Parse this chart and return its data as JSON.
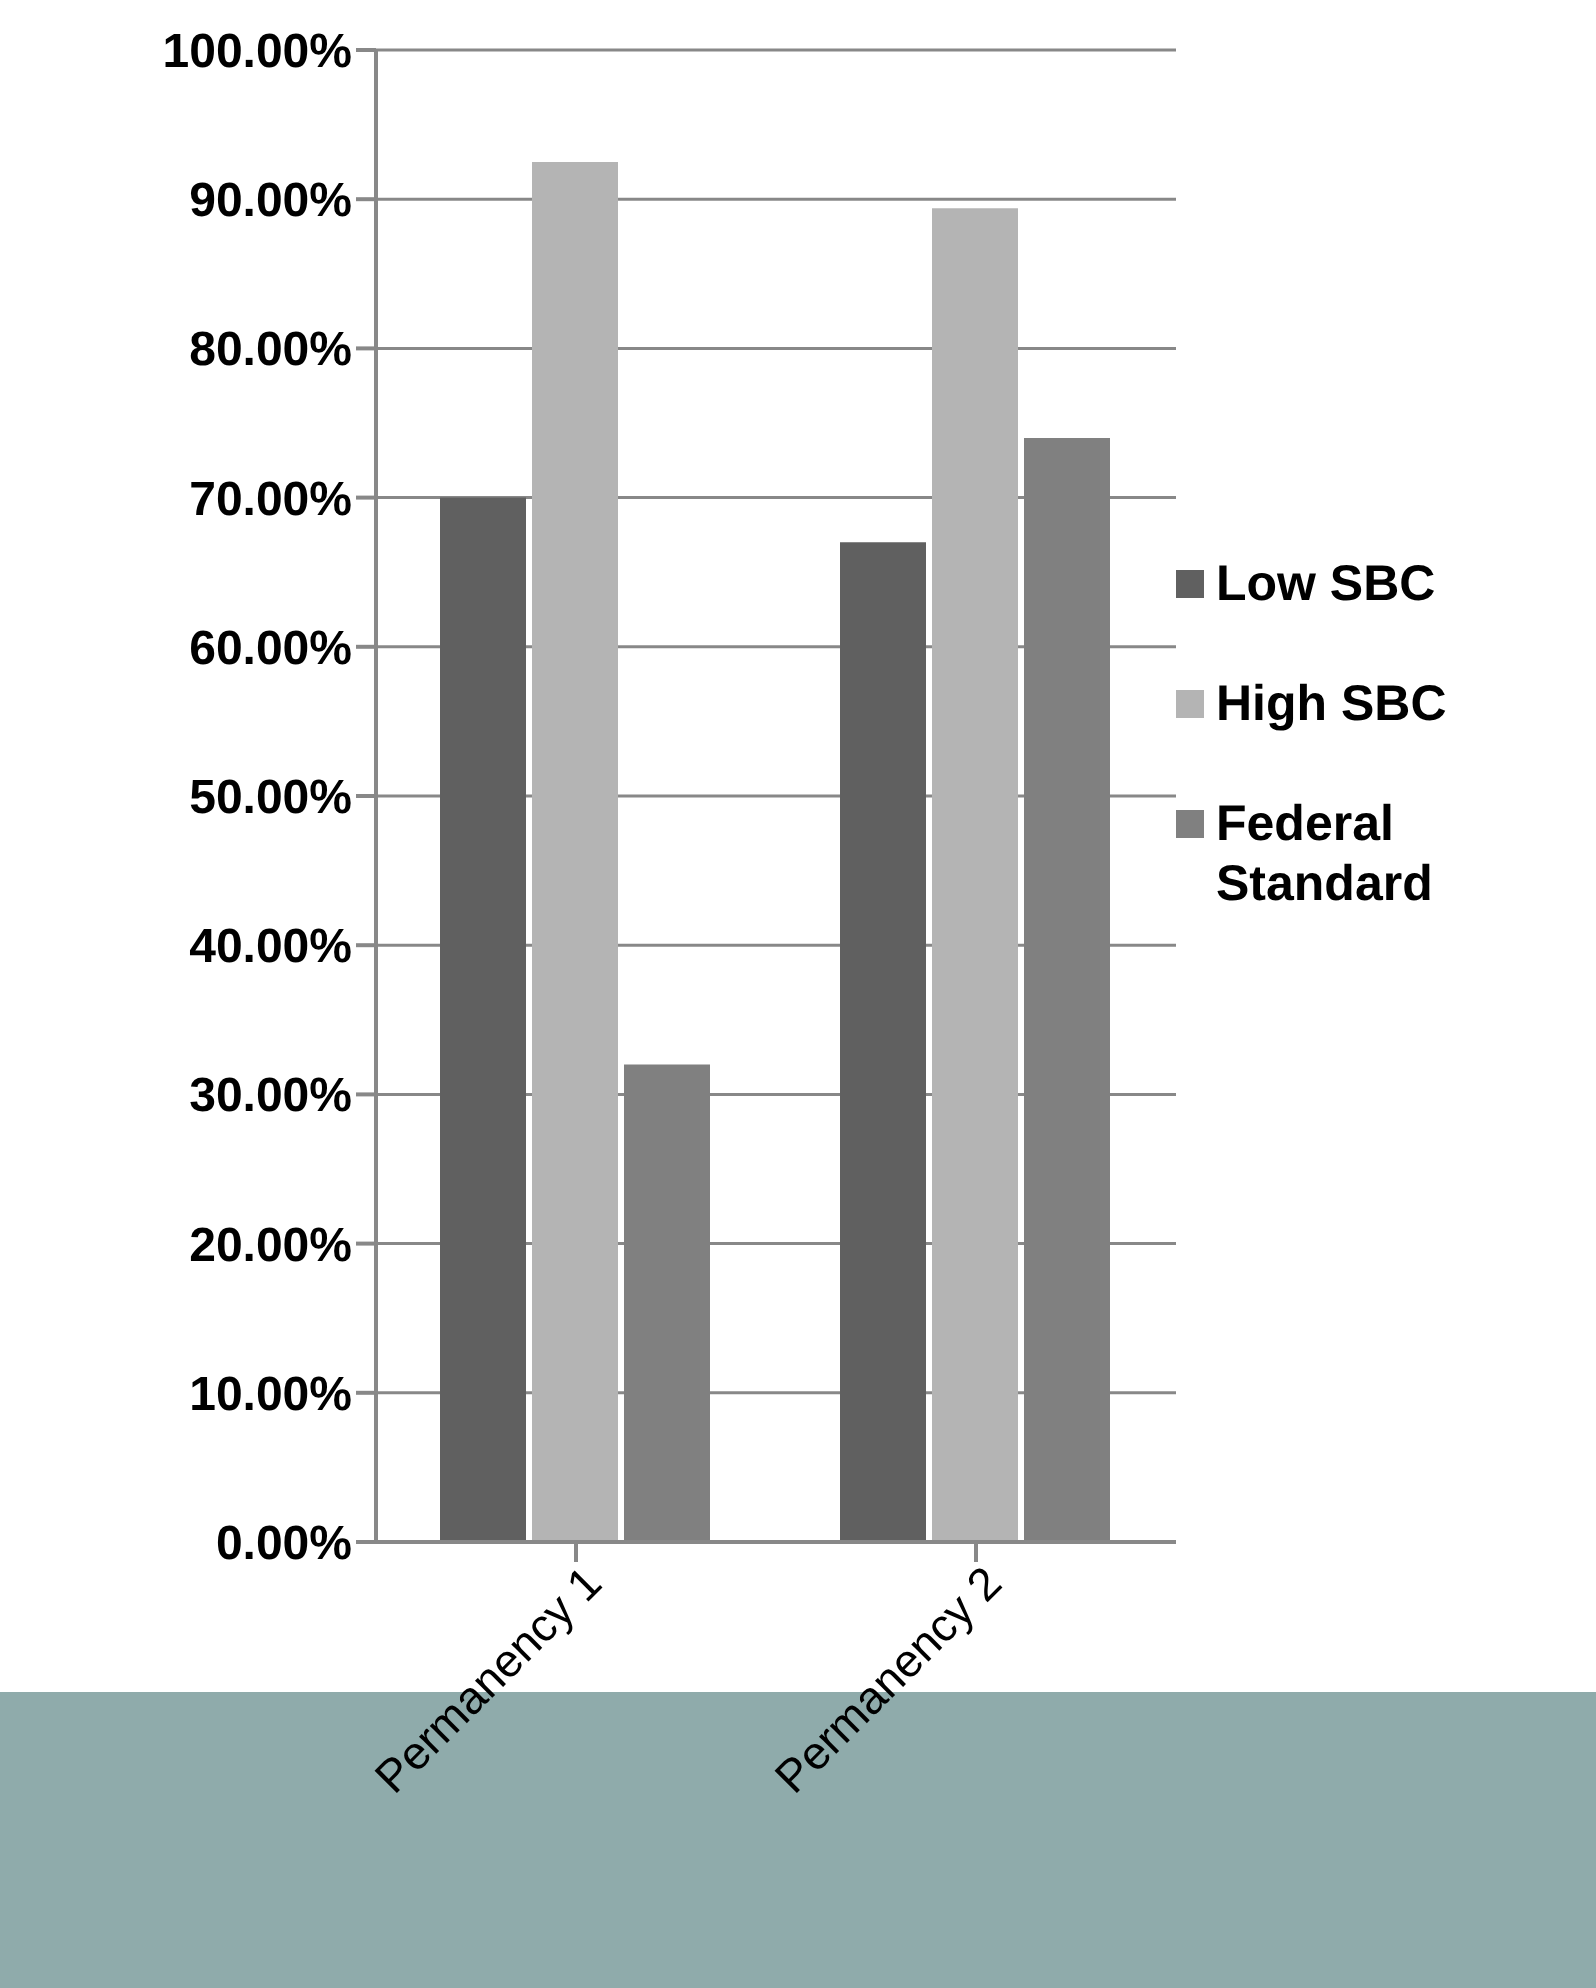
{
  "chart_data": {
    "type": "bar",
    "categories": [
      "Permanency 1",
      "Permanency 2"
    ],
    "series": [
      {
        "name": "Low SBC",
        "color": "#606060",
        "values": [
          70,
          67
        ]
      },
      {
        "name": "High SBC",
        "color": "#b4b4b4",
        "values": [
          92.5,
          89.4
        ]
      },
      {
        "name": "Federal Standard",
        "color": "#808080",
        "values": [
          32,
          74
        ]
      }
    ],
    "ylim": [
      0,
      100
    ],
    "yticks": [
      {
        "value": 0,
        "label": "0.00%"
      },
      {
        "value": 10,
        "label": "10.00%"
      },
      {
        "value": 20,
        "label": "20.00%"
      },
      {
        "value": 30,
        "label": "30.00%"
      },
      {
        "value": 40,
        "label": "40.00%"
      },
      {
        "value": 50,
        "label": "50.00%"
      },
      {
        "value": 60,
        "label": "60.00%"
      },
      {
        "value": 70,
        "label": "70.00%"
      },
      {
        "value": 80,
        "label": "80.00%"
      },
      {
        "value": 90,
        "label": "90.00%"
      },
      {
        "value": 100,
        "label": "100.00%"
      }
    ],
    "grid": "y",
    "legend": "right"
  }
}
